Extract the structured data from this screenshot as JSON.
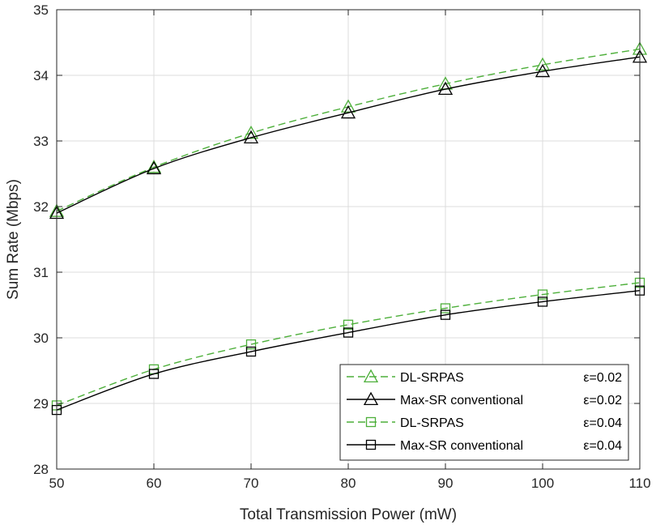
{
  "chart_data": {
    "type": "line",
    "title": "",
    "xlabel": "Total Transmission Power (mW)",
    "ylabel": "Sum Rate (Mbps)",
    "xlim": [
      50,
      110
    ],
    "ylim": [
      28,
      35
    ],
    "xticks": [
      50,
      60,
      70,
      80,
      90,
      100,
      110
    ],
    "yticks": [
      28,
      29,
      30,
      31,
      32,
      33,
      34,
      35
    ],
    "grid": true,
    "legend_position": "bottom-right",
    "x": [
      50,
      60,
      70,
      80,
      90,
      100,
      110
    ],
    "series": [
      {
        "name": "DL-SRPAS",
        "epsilon_label": "ε=0.02",
        "values": [
          31.93,
          32.6,
          33.12,
          33.52,
          33.87,
          34.16,
          34.4
        ],
        "color": "#4daf3a",
        "line_style": "dashed",
        "marker": "triangle"
      },
      {
        "name": "Max-SR conventional",
        "epsilon_label": "ε=0.02",
        "values": [
          31.9,
          32.58,
          33.05,
          33.43,
          33.79,
          34.06,
          34.28
        ],
        "color": "#000000",
        "line_style": "solid",
        "marker": "triangle"
      },
      {
        "name": "DL-SRPAS",
        "epsilon_label": "ε=0.04",
        "values": [
          28.97,
          29.52,
          29.9,
          30.2,
          30.45,
          30.66,
          30.84
        ],
        "color": "#4daf3a",
        "line_style": "dashed",
        "marker": "square"
      },
      {
        "name": "Max-SR conventional",
        "epsilon_label": "ε=0.04",
        "values": [
          28.9,
          29.45,
          29.79,
          30.08,
          30.35,
          30.55,
          30.72
        ],
        "color": "#000000",
        "line_style": "solid",
        "marker": "square"
      }
    ]
  }
}
